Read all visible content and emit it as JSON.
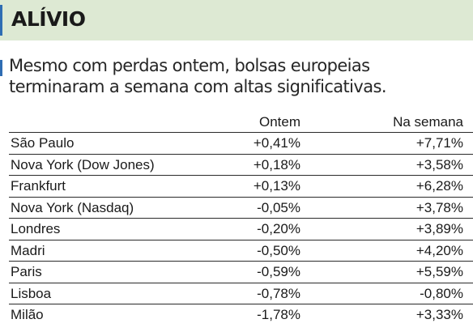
{
  "header": {
    "title": "ALÍVIO"
  },
  "lede": {
    "line1": "Mesmo com perdas ontem, bolsas europeias",
    "line2": "terminaram a semana com altas significativas."
  },
  "table": {
    "columns": [
      "",
      "Ontem",
      "Na semana"
    ],
    "rows": [
      {
        "market": "São Paulo",
        "ontem": "+0,41%",
        "semana": "+7,71%"
      },
      {
        "market": "Nova York (Dow Jones)",
        "ontem": "+0,18%",
        "semana": "+3,58%"
      },
      {
        "market": "Frankfurt",
        "ontem": "+0,13%",
        "semana": "+6,28%"
      },
      {
        "market": "Nova York (Nasdaq)",
        "ontem": "-0,05%",
        "semana": "+3,78%"
      },
      {
        "market": "Londres",
        "ontem": "-0,20%",
        "semana": "+3,89%"
      },
      {
        "market": "Madri",
        "ontem": "-0,50%",
        "semana": "+4,20%"
      },
      {
        "market": "Paris",
        "ontem": "-0,59%",
        "semana": "+5,59%"
      },
      {
        "market": "Lisboa",
        "ontem": "-0,78%",
        "semana": "-0,80%"
      },
      {
        "market": "Milão",
        "ontem": "-1,78%",
        "semana": "+3,33%"
      }
    ]
  },
  "colors": {
    "header_band": "#dde9d3",
    "accent": "#2f6db3",
    "rule": "#2a2a2a"
  }
}
